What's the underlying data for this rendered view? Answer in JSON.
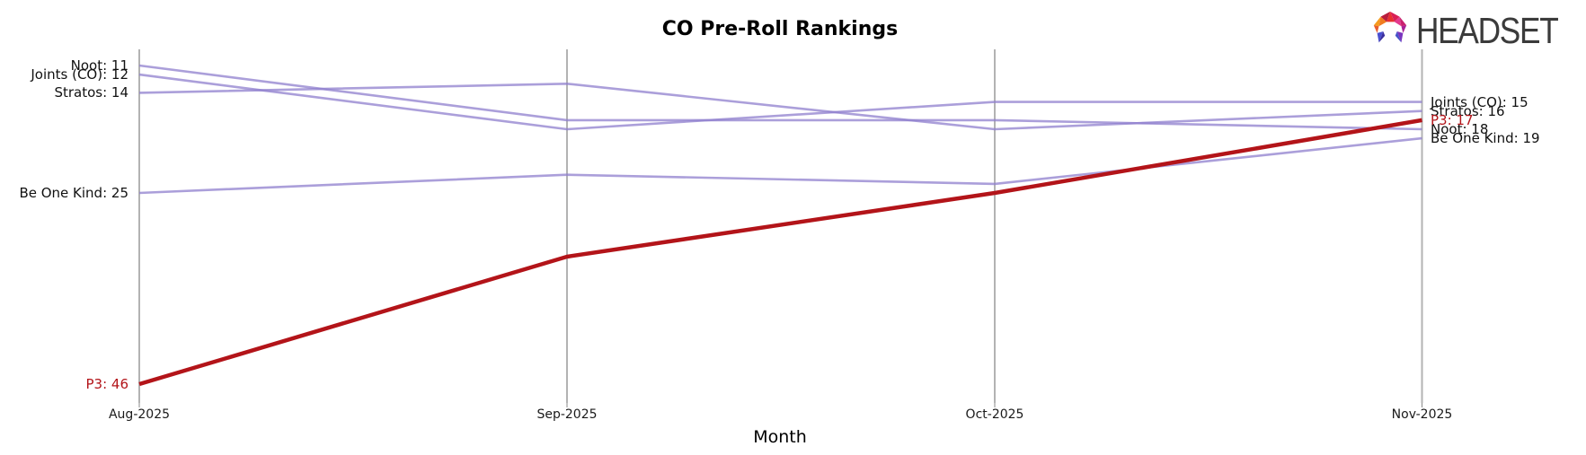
{
  "title": "CO Pre-Roll Rankings",
  "logo": {
    "text": "HEADSET"
  },
  "colors": {
    "axis_line": "#b3b3b3",
    "axis_tick": "#8a8a8a",
    "purple_line": "#8f7fce",
    "highlight_red": "#b31419",
    "label_text": "#111111"
  },
  "chart_data": {
    "type": "line",
    "subtype": "bump-ranking",
    "title": "CO Pre-Roll Rankings",
    "xlabel": "Month",
    "ylabel": "",
    "y_inverted": true,
    "ylim": [
      11,
      46
    ],
    "grid": false,
    "legend": "inline-labels",
    "categories": [
      "Aug-2025",
      "Sep-2025",
      "Oct-2025",
      "Nov-2025"
    ],
    "series": [
      {
        "name": "Noot",
        "values": [
          11,
          17,
          17,
          18
        ],
        "color": "#8f7fce",
        "highlight": false,
        "label_left": "Noot: 11",
        "label_right": "Noot: 18"
      },
      {
        "name": "Joints (CO)",
        "values": [
          12,
          18,
          15,
          15
        ],
        "color": "#8f7fce",
        "highlight": false,
        "label_left": "Joints (CO): 12",
        "label_right": "Joints (CO): 15"
      },
      {
        "name": "Stratos",
        "values": [
          14,
          13,
          18,
          16
        ],
        "color": "#8f7fce",
        "highlight": false,
        "label_left": "Stratos: 14",
        "label_right": "Stratos: 16"
      },
      {
        "name": "Be One Kind",
        "values": [
          25,
          23,
          24,
          19
        ],
        "color": "#8f7fce",
        "highlight": false,
        "label_left": "Be One Kind: 25",
        "label_right": "Be One Kind: 19"
      },
      {
        "name": "P3",
        "values": [
          46,
          32,
          25,
          17
        ],
        "color": "#b31419",
        "highlight": true,
        "label_left": "P3: 46",
        "label_right": "P3: 17"
      }
    ]
  }
}
